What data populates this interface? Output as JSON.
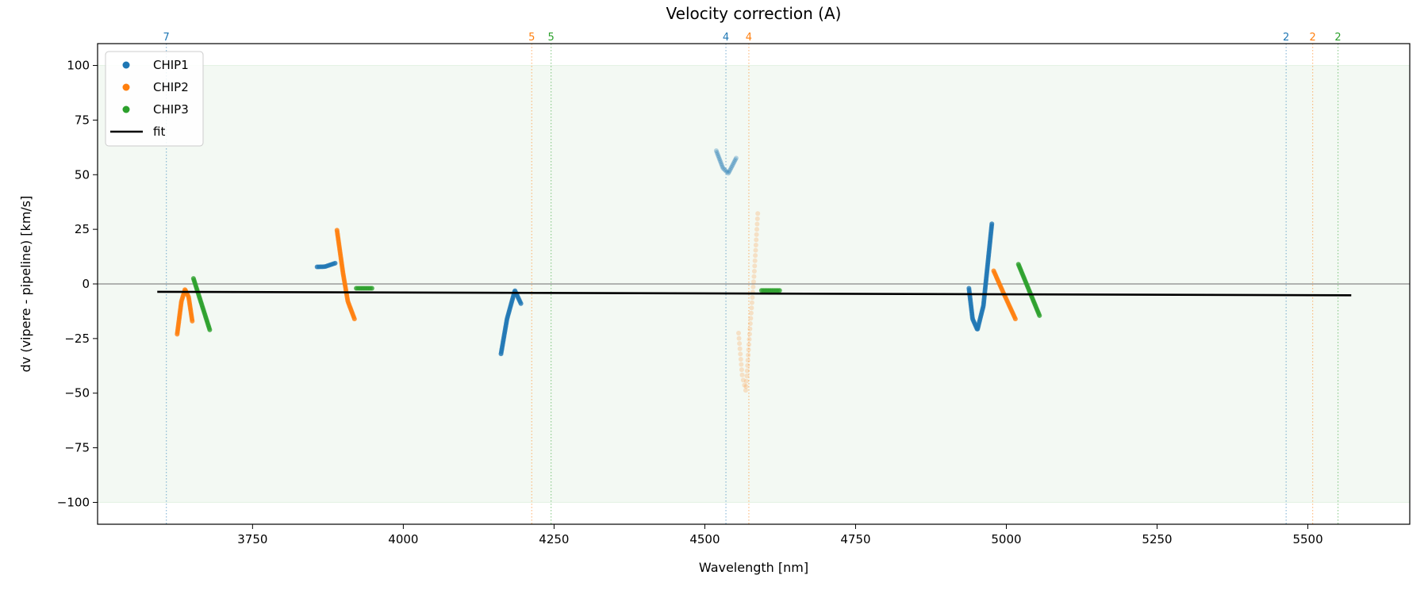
{
  "chart_data": {
    "type": "scatter",
    "title": "Velocity correction (A)",
    "xlabel": "Wavelength [nm]",
    "ylabel": "dv (vipere - pipeline) [km/s]",
    "xlim": [
      3493,
      5669
    ],
    "ylim": [
      -110,
      110
    ],
    "xticks": [
      3750,
      4000,
      4250,
      4500,
      4750,
      5000,
      5250,
      5500
    ],
    "yticks": [
      -100,
      -75,
      -50,
      -25,
      0,
      25,
      50,
      75,
      100
    ],
    "grid": false,
    "legend_placement": "top-left",
    "shaded_band": {
      "y": [
        -100,
        100
      ],
      "color": "#2ca02c"
    },
    "zero_line": 0,
    "colors": {
      "CHIP1": "#1f77b4",
      "CHIP2": "#ff7f0e",
      "CHIP3": "#2ca02c",
      "fit": "#000000"
    },
    "series": [
      {
        "name": "CHIP1",
        "segments": [
          {
            "points": [
              [
                3857,
                7.8
              ],
              [
                3870,
                7.9
              ],
              [
                3887,
                9.5
              ]
            ],
            "alpha": 1
          },
          {
            "points": [
              [
                4162,
                -32
              ],
              [
                4172,
                -16
              ],
              [
                4185,
                -3
              ],
              [
                4195,
                -9
              ]
            ],
            "alpha": 1
          },
          {
            "points": [
              [
                4519,
                61
              ],
              [
                4530,
                53
              ],
              [
                4539,
                50.6
              ],
              [
                4552,
                57.6
              ]
            ],
            "alpha": 0.3
          },
          {
            "points": [
              [
                4938,
                -2
              ],
              [
                4944,
                -16
              ],
              [
                4952,
                -21
              ],
              [
                4962,
                -10
              ],
              [
                4976,
                27.5
              ]
            ],
            "alpha": 1
          }
        ]
      },
      {
        "name": "CHIP2",
        "segments": [
          {
            "points": [
              [
                3625,
                -23
              ],
              [
                3632,
                -8
              ],
              [
                3638,
                -2.5
              ],
              [
                3644,
                -6
              ],
              [
                3650,
                -17
              ]
            ],
            "alpha": 1
          },
          {
            "points": [
              [
                3890,
                24.6
              ],
              [
                3900,
                5
              ],
              [
                3908,
                -8
              ],
              [
                3919,
                -16
              ]
            ],
            "alpha": 1
          },
          {
            "points": [
              [
                4556,
                -22.5
              ],
              [
                4562,
                -42
              ],
              [
                4568,
                -49
              ],
              [
                4575,
                -20
              ],
              [
                4582,
                5
              ],
              [
                4588,
                33
              ]
            ],
            "alpha": 0.2
          },
          {
            "points": [
              [
                4979,
                6
              ],
              [
                4995,
                -4
              ],
              [
                5015,
                -16
              ]
            ],
            "alpha": 1
          }
        ]
      },
      {
        "name": "CHIP3",
        "segments": [
          {
            "points": [
              [
                3652,
                2.5
              ],
              [
                3679,
                -21
              ]
            ],
            "alpha": 1
          },
          {
            "points": [
              [
                3922,
                -2
              ],
              [
                3948,
                -2
              ]
            ],
            "alpha": 1
          },
          {
            "points": [
              [
                4594,
                -3
              ],
              [
                4624,
                -3
              ]
            ],
            "alpha": 1
          },
          {
            "points": [
              [
                5020,
                9
              ],
              [
                5055,
                -14.5
              ]
            ],
            "alpha": 1
          }
        ]
      }
    ],
    "fit": {
      "name": "fit",
      "points": [
        [
          3592,
          -3.6
        ],
        [
          5572,
          -5.2
        ]
      ]
    },
    "order_markers": [
      {
        "x": 3607,
        "label": "7",
        "chip": "CHIP1"
      },
      {
        "x": 4213,
        "label": "5",
        "chip": "CHIP2"
      },
      {
        "x": 4245,
        "label": "5",
        "chip": "CHIP3"
      },
      {
        "x": 4535,
        "label": "4",
        "chip": "CHIP1"
      },
      {
        "x": 4573,
        "label": "4",
        "chip": "CHIP2"
      },
      {
        "x": 5464,
        "label": "2",
        "chip": "CHIP1"
      },
      {
        "x": 5508,
        "label": "2",
        "chip": "CHIP2"
      },
      {
        "x": 5550,
        "label": "2",
        "chip": "CHIP3"
      }
    ]
  }
}
